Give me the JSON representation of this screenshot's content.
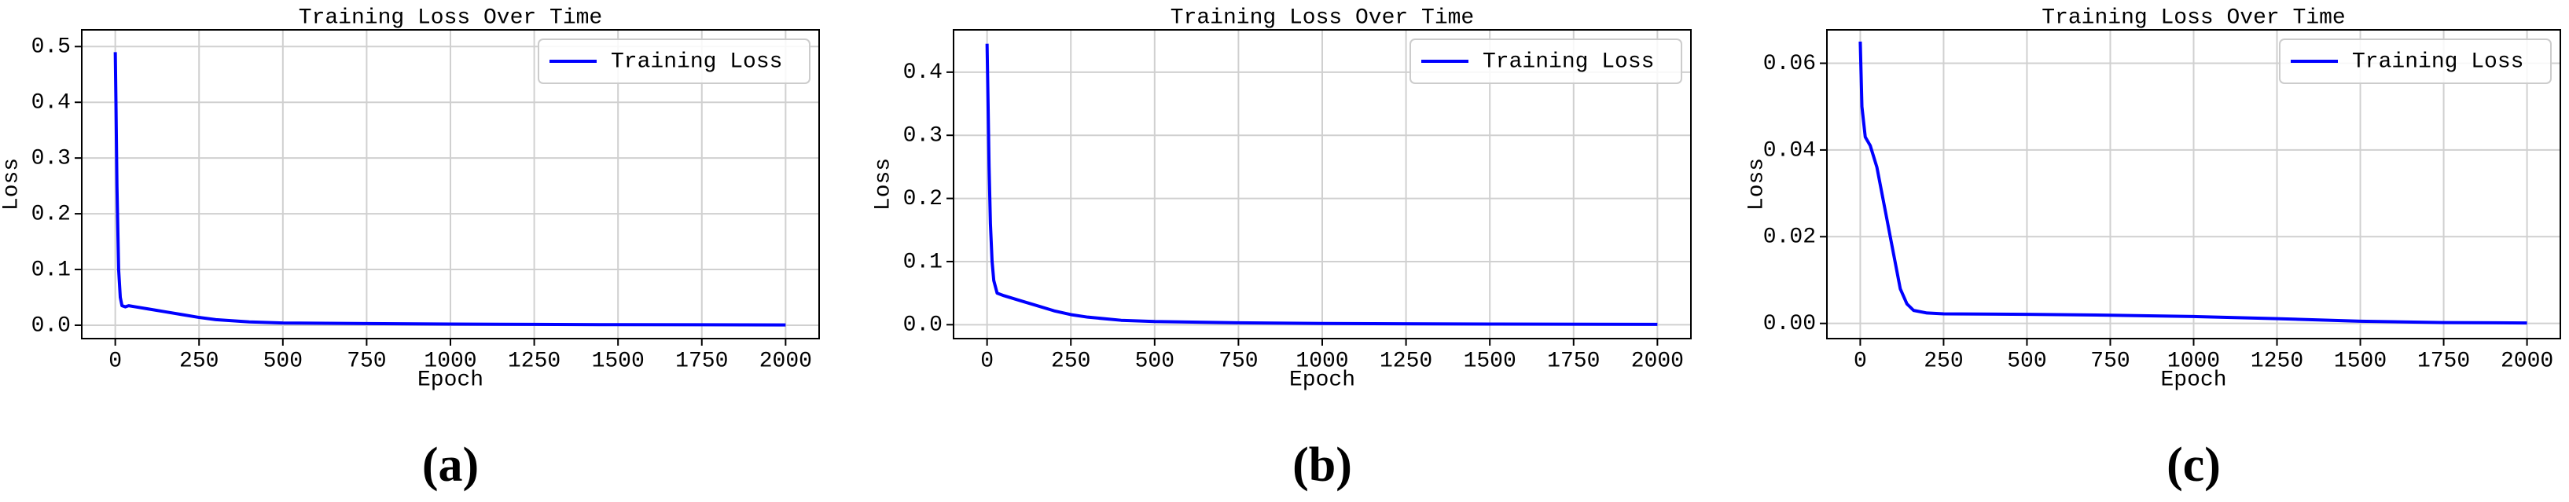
{
  "chart_data": [
    {
      "type": "line",
      "title": "Training Loss Over Time",
      "x_label": "Epoch",
      "y_label": "Loss",
      "caption": "(a)",
      "xlim": [
        -100,
        2100
      ],
      "ylim": [
        -0.024,
        0.53
      ],
      "xticks": [
        0,
        250,
        500,
        750,
        1000,
        1250,
        1500,
        1750,
        2000
      ],
      "yticks": [
        {
          "value": 0,
          "label": "0.0"
        },
        0.1,
        0.2,
        0.3,
        0.4,
        0.5
      ],
      "grid": true,
      "legend": "upper right",
      "series": [
        {
          "name": "Training Loss",
          "color": "#0000ff",
          "x": [
            0,
            2,
            5,
            10,
            15,
            20,
            30,
            40,
            60,
            100,
            150,
            200,
            250,
            300,
            400,
            500,
            750,
            1000,
            1250,
            1500,
            1750,
            2000
          ],
          "values": [
            0.49,
            0.4,
            0.25,
            0.1,
            0.05,
            0.035,
            0.033,
            0.035,
            0.033,
            0.029,
            0.024,
            0.019,
            0.014,
            0.01,
            0.006,
            0.004,
            0.003,
            0.002,
            0.0015,
            0.001,
            0.0008,
            0.0005
          ]
        }
      ]
    },
    {
      "type": "line",
      "title": "Training Loss Over Time",
      "x_label": "Epoch",
      "y_label": "Loss",
      "caption": "(b)",
      "xlim": [
        -100,
        2100
      ],
      "ylim": [
        -0.022,
        0.467
      ],
      "xticks": [
        0,
        250,
        500,
        750,
        1000,
        1250,
        1500,
        1750,
        2000
      ],
      "yticks": [
        {
          "value": 0,
          "label": "0.0"
        },
        0.1,
        0.2,
        0.3,
        0.4
      ],
      "grid": true,
      "legend": "upper right",
      "series": [
        {
          "name": "Training Loss",
          "color": "#0000ff",
          "x": [
            0,
            3,
            6,
            10,
            15,
            20,
            30,
            50,
            100,
            150,
            200,
            250,
            300,
            400,
            500,
            750,
            1000,
            1500,
            2000
          ],
          "values": [
            0.445,
            0.35,
            0.25,
            0.16,
            0.1,
            0.07,
            0.05,
            0.046,
            0.038,
            0.03,
            0.022,
            0.016,
            0.012,
            0.007,
            0.005,
            0.003,
            0.002,
            0.001,
            0.0005
          ]
        }
      ]
    },
    {
      "type": "line",
      "title": "Training Loss Over Time",
      "x_label": "Epoch",
      "y_label": "Loss",
      "caption": "(c)",
      "xlim": [
        -100,
        2100
      ],
      "ylim": [
        -0.0035,
        0.0677
      ],
      "xticks": [
        0,
        250,
        500,
        750,
        1000,
        1250,
        1500,
        1750,
        2000
      ],
      "yticks": [
        {
          "value": 0,
          "label": "0.00"
        },
        0.02,
        0.04,
        0.06
      ],
      "grid": true,
      "legend": "upper right",
      "series": [
        {
          "name": "Training Loss",
          "color": "#0000ff",
          "x": [
            0,
            5,
            15,
            30,
            50,
            75,
            100,
            120,
            140,
            160,
            200,
            250,
            500,
            750,
            1000,
            1250,
            1500,
            1750,
            2000
          ],
          "values": [
            0.065,
            0.05,
            0.043,
            0.041,
            0.036,
            0.026,
            0.016,
            0.008,
            0.0045,
            0.003,
            0.0024,
            0.0022,
            0.0021,
            0.0019,
            0.0016,
            0.0011,
            0.0005,
            0.0002,
            0.0001
          ]
        }
      ]
    }
  ]
}
